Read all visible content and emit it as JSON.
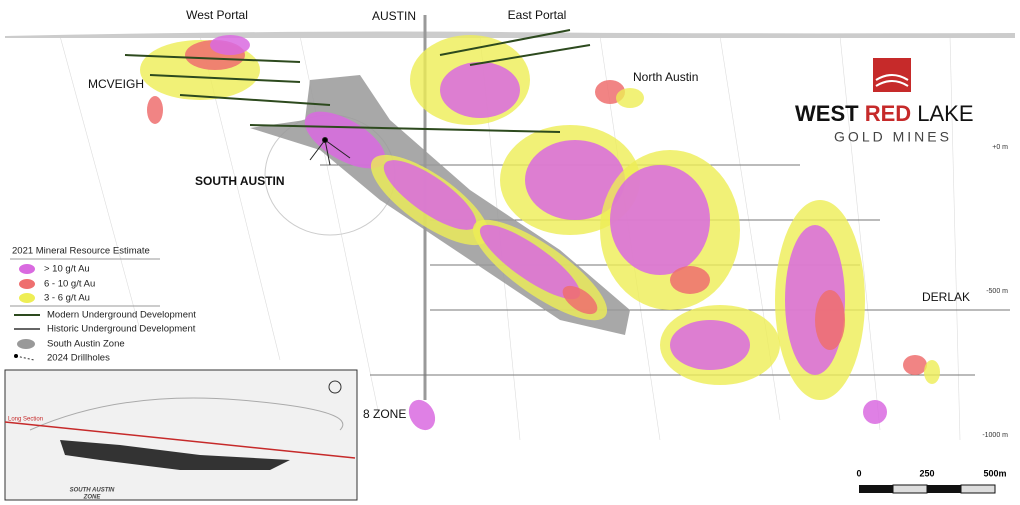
{
  "labels": {
    "west_portal": "West Portal",
    "austin": "AUSTIN",
    "east_portal": "East Portal",
    "mcveigh": "MCVEIGH",
    "north_austin": "North Austin",
    "south_austin": "SOUTH AUSTIN",
    "derlak": "DERLAK",
    "eight_zone": "8 ZONE"
  },
  "logo": {
    "words": [
      "WEST",
      "RED",
      "LAKE"
    ],
    "subtitle": "GOLD MINES"
  },
  "depths": [
    "+0 m",
    "-500 m",
    "-1000 m"
  ],
  "legend": {
    "title": "2021 Mineral Resource Estimate",
    "items": [
      "> 10 g/t Au",
      "6 - 10 g/t Au",
      "3 - 6 g/t Au",
      "Modern Underground Development",
      "Historic Underground Development",
      "South Austin Zone",
      "2024 Drillholes"
    ]
  },
  "inset": {
    "line_label": "Long Section",
    "zone_label": [
      "SOUTH AUSTIN",
      "ZONE"
    ]
  },
  "scale_bar": [
    "0",
    "250",
    "500m"
  ]
}
